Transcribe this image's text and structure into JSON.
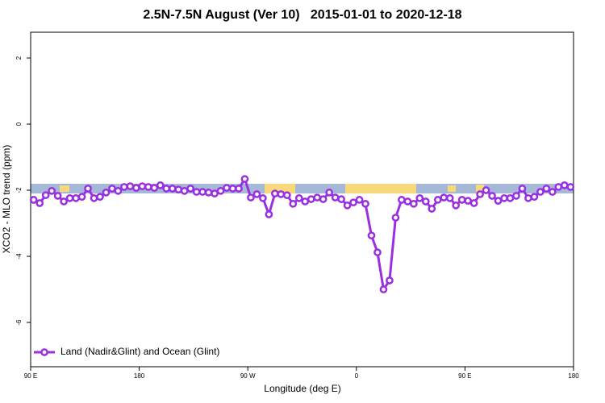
{
  "chart_data": {
    "type": "line",
    "title": "2.5N-7.5N August (Ver 10)   2015-01-01 to 2020-12-18",
    "x_label": "Longitude (deg E)",
    "y_label": "XCO2 - MLO trend (ppm)",
    "xlim": [
      90,
      540
    ],
    "xticks": [
      {
        "value": 90,
        "label": "90 E"
      },
      180,
      {
        "value": 270,
        "label": "90 W"
      },
      {
        "value": 360,
        "label": "0"
      },
      {
        "value": 450,
        "label": "90 E"
      },
      {
        "value": 540,
        "label": "180"
      }
    ],
    "ylim": [
      -7.34,
      2.78
    ],
    "yticks": [
      2,
      0,
      -2,
      -4,
      -6
    ],
    "legend": "bottom-left",
    "x": [
      92.5,
      97.5,
      102.5,
      107.5,
      112.5,
      117.5,
      122.5,
      127.5,
      132.5,
      137.5,
      142.5,
      147.5,
      152.5,
      157.5,
      162.5,
      167.5,
      172.5,
      177.5,
      182.5,
      187.5,
      192.5,
      197.5,
      202.5,
      207.5,
      212.5,
      217.5,
      222.5,
      227.5,
      232.5,
      237.5,
      242.5,
      247.5,
      252.5,
      257.5,
      262.5,
      267.5,
      272.5,
      277.5,
      282.5,
      287.5,
      292.5,
      297.5,
      302.5,
      307.5,
      312.5,
      317.5,
      322.5,
      327.5,
      332.5,
      337.5,
      342.5,
      347.5,
      352.5,
      357.5,
      362.5,
      367.5,
      372.5,
      377.5,
      382.5,
      387.5,
      392.5,
      397.5,
      402.5,
      407.5,
      412.5,
      417.5,
      422.5,
      427.5,
      432.5,
      437.5,
      442.5,
      447.5,
      452.5,
      457.5,
      462.5,
      467.5,
      472.5,
      477.5,
      482.5,
      487.5,
      492.5,
      497.5,
      502.5,
      507.5,
      512.5,
      517.5,
      522.5,
      527.5,
      532.5,
      537.5
    ],
    "series": [
      {
        "name": "Land (Nadir&Glint) and Ocean (Glint)",
        "color": "#9a2fe0",
        "values": [
          -2.29,
          -2.39,
          -2.15,
          -2.02,
          -2.17,
          -2.34,
          -2.24,
          -2.24,
          -2.2,
          -1.95,
          -2.24,
          -2.2,
          -2.07,
          -1.95,
          -2.02,
          -1.9,
          -1.88,
          -1.93,
          -1.88,
          -1.9,
          -1.93,
          -1.85,
          -1.95,
          -1.95,
          -1.98,
          -2.02,
          -1.95,
          -2.05,
          -2.05,
          -2.07,
          -2.1,
          -2.02,
          -1.93,
          -1.95,
          -1.95,
          -1.66,
          -2.22,
          -2.12,
          -2.24,
          -2.73,
          -2.1,
          -2.12,
          -2.15,
          -2.41,
          -2.24,
          -2.34,
          -2.27,
          -2.22,
          -2.27,
          -2.07,
          -2.22,
          -2.27,
          -2.46,
          -2.37,
          -2.29,
          -2.41,
          -3.37,
          -3.88,
          -5.0,
          -4.73,
          -2.83,
          -2.29,
          -2.34,
          -2.41,
          -2.24,
          -2.34,
          -2.56,
          -2.29,
          -2.22,
          -2.24,
          -2.46,
          -2.29,
          -2.32,
          -2.39,
          -2.12,
          -2.0,
          -2.17,
          -2.32,
          -2.24,
          -2.24,
          -2.17,
          -1.95,
          -2.24,
          -2.2,
          -2.05,
          -1.95,
          -2.05,
          -1.9,
          -1.85,
          -1.9
        ]
      }
    ]
  }
}
